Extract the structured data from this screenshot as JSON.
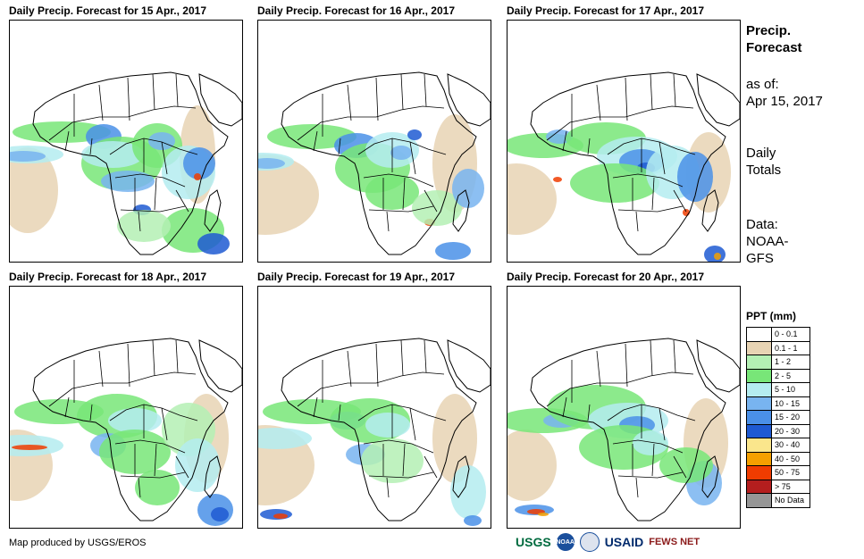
{
  "panels": [
    {
      "title": "Daily Precip. Forecast for 15 Apr., 2017"
    },
    {
      "title": "Daily Precip. Forecast for 16 Apr., 2017"
    },
    {
      "title": "Daily Precip. Forecast for 17 Apr., 2017"
    },
    {
      "title": "Daily Precip. Forecast for 18 Apr., 2017"
    },
    {
      "title": "Daily Precip. Forecast for 19 Apr., 2017"
    },
    {
      "title": "Daily Precip. Forecast for 20 Apr., 2017"
    }
  ],
  "sidebar": {
    "heading_line1": "Precip.",
    "heading_line2": "Forecast",
    "asof_line1": "as of:",
    "asof_line2": "Apr 15, 2017",
    "totals_line1": "Daily",
    "totals_line2": "Totals",
    "data_line1": "Data:",
    "data_line2": "NOAA-",
    "data_line3": "GFS"
  },
  "legend": {
    "title": "PPT (mm)",
    "items": [
      {
        "label": "0 - 0.1",
        "color": "#ffffff"
      },
      {
        "label": "0.1 - 1",
        "color": "#e8d4b4"
      },
      {
        "label": "1 - 2",
        "color": "#b4f0b4"
      },
      {
        "label": "2 - 5",
        "color": "#78e678"
      },
      {
        "label": "5 - 10",
        "color": "#b4ecf0"
      },
      {
        "label": "10 - 15",
        "color": "#78b4f0"
      },
      {
        "label": "15 - 20",
        "color": "#4a90e8"
      },
      {
        "label": "20 - 30",
        "color": "#1e5ad2"
      },
      {
        "label": "30 - 40",
        "color": "#fae68c"
      },
      {
        "label": "40 - 50",
        "color": "#f5a000"
      },
      {
        "label": "50 - 75",
        "color": "#f03c00"
      },
      {
        "label": "> 75",
        "color": "#b41e1e"
      },
      {
        "label": "No Data",
        "color": "#969696"
      }
    ]
  },
  "footer": {
    "credit": "Map produced by USGS/EROS"
  },
  "logos": {
    "usgs": "USGS",
    "noaa": "NOAA",
    "usaid": "USAID",
    "fewsnet": "FEWS NET"
  }
}
